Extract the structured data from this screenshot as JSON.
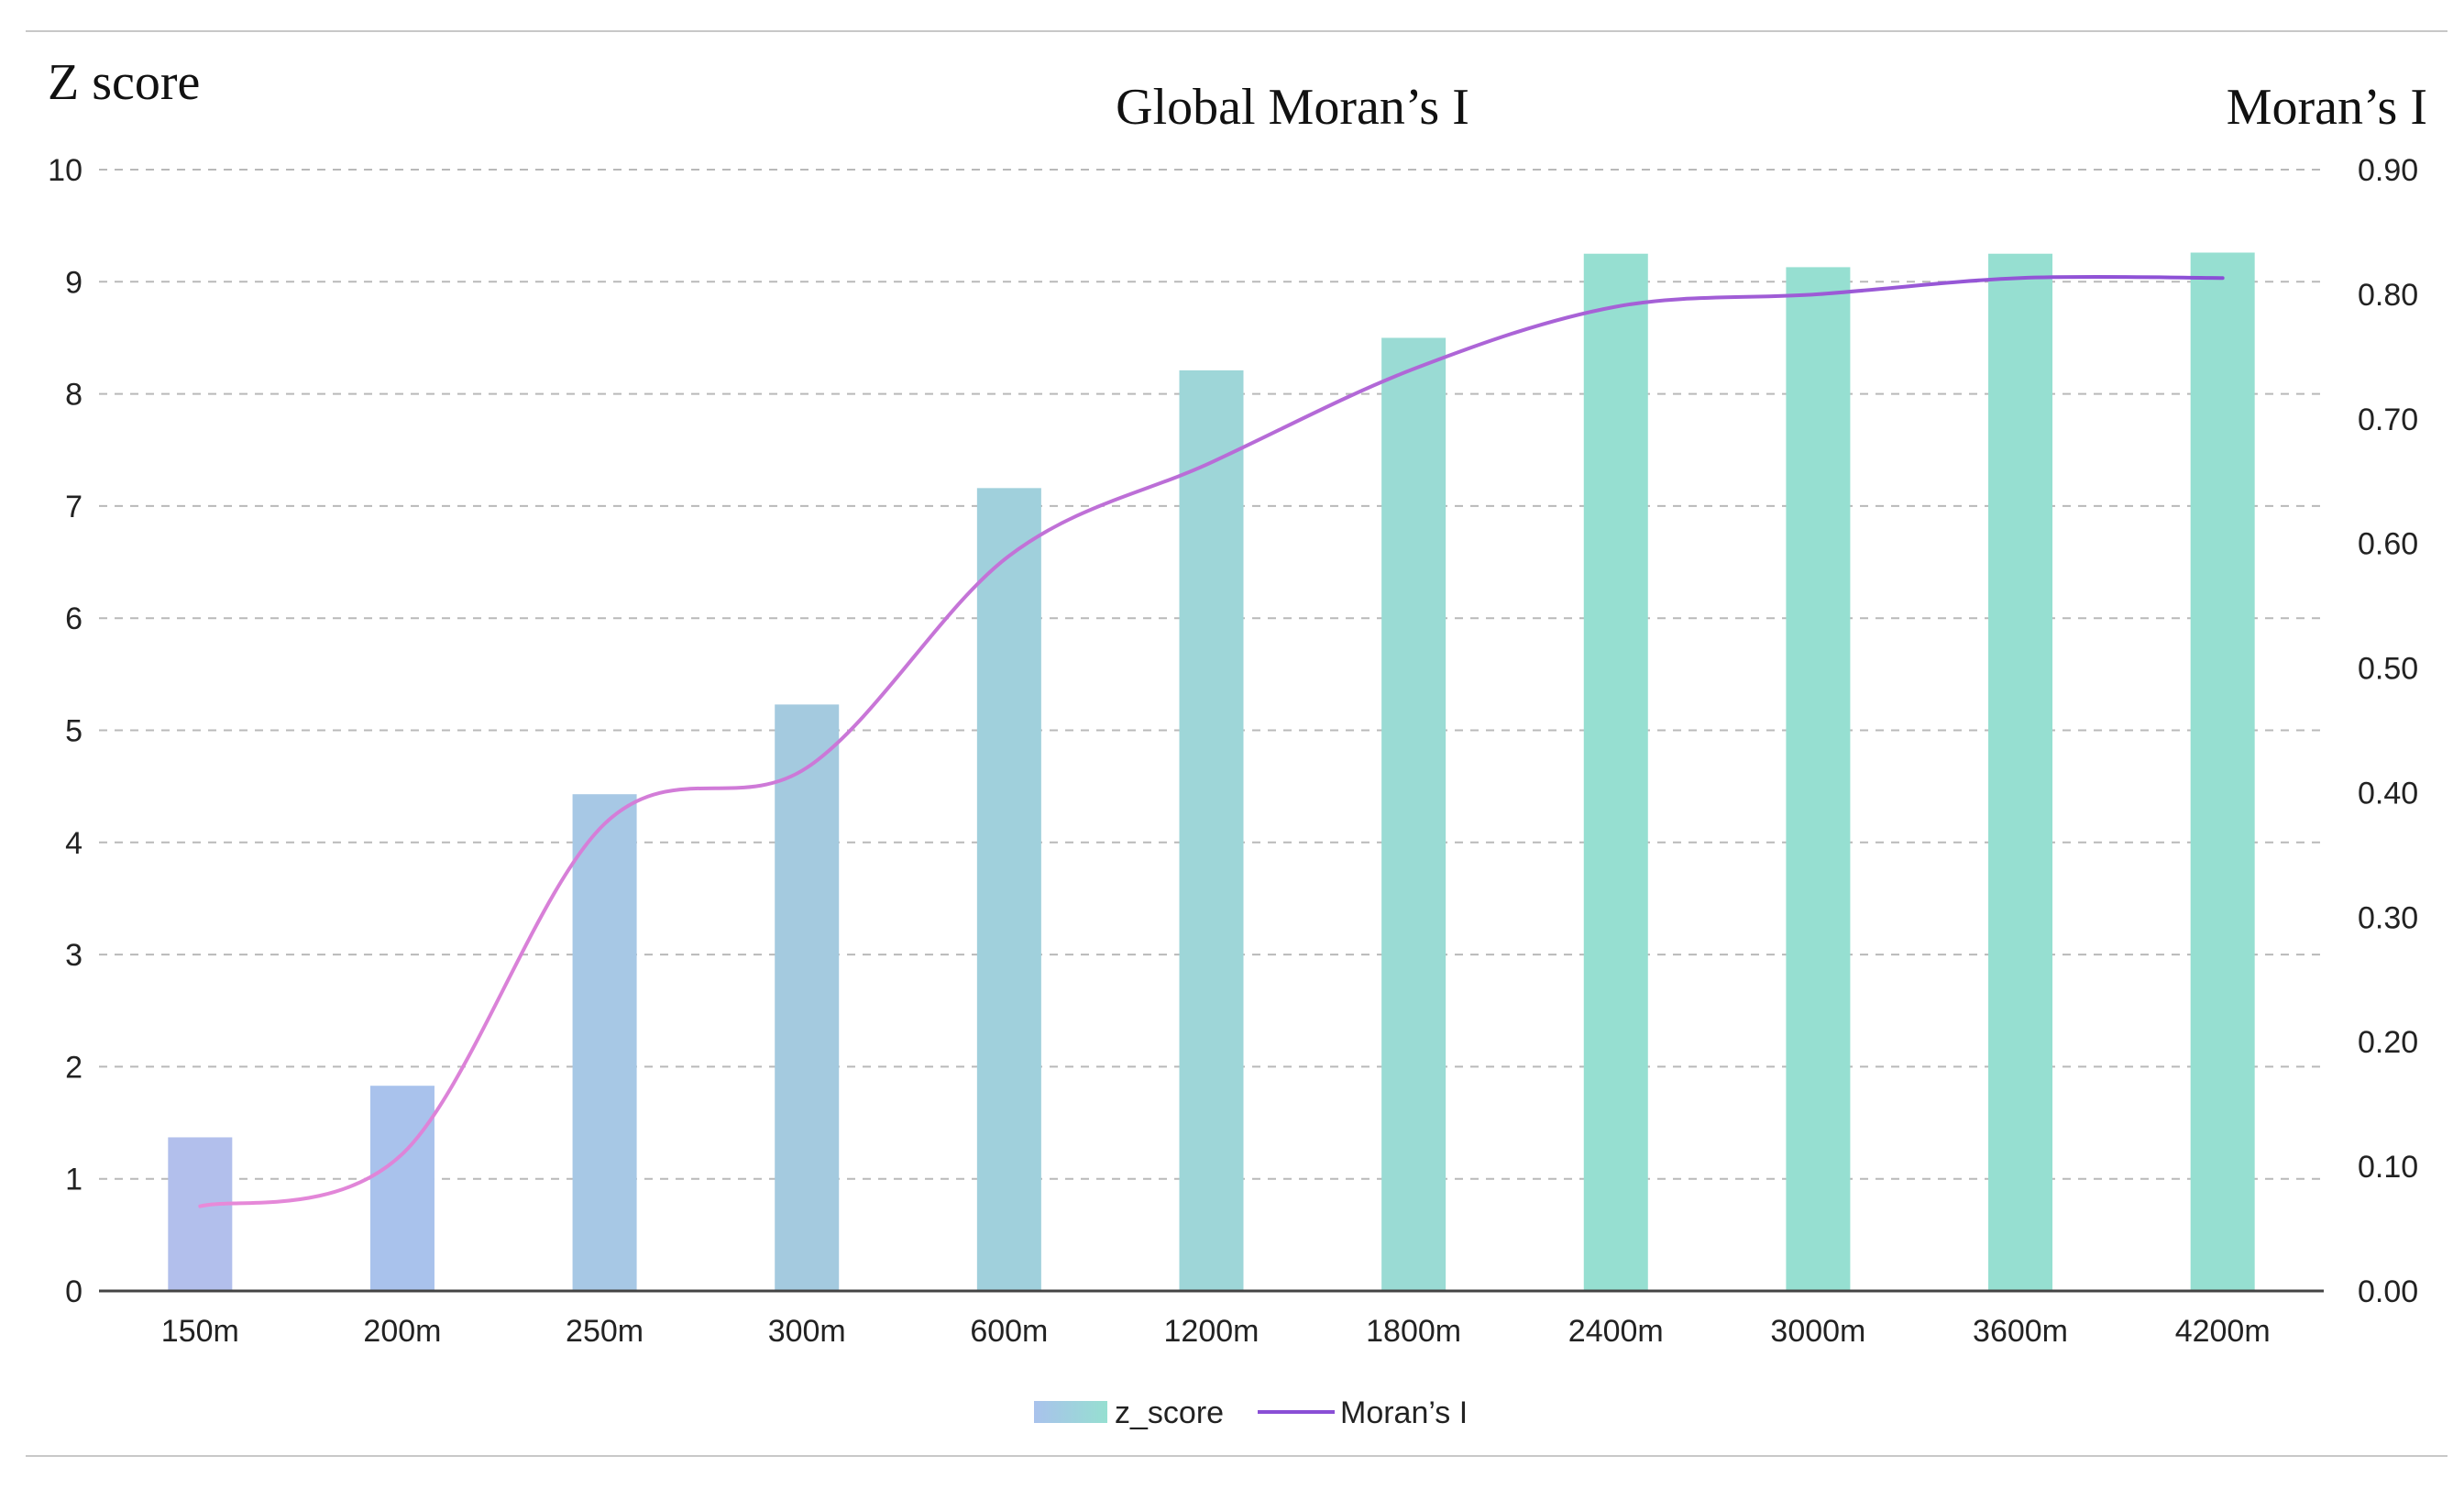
{
  "chart_data": {
    "type": "bar",
    "title": "Global Moran’s I",
    "ylabel_left": "Z score",
    "ylabel_right": "Moran’s I",
    "categories": [
      "150m",
      "200m",
      "250m",
      "300m",
      "600m",
      "1200m",
      "1800m",
      "2400m",
      "3000m",
      "3600m",
      "4200m"
    ],
    "y_left": {
      "min": 0,
      "max": 10,
      "ticks": [
        "0",
        "1",
        "2",
        "3",
        "4",
        "5",
        "6",
        "7",
        "8",
        "9",
        "10"
      ]
    },
    "y_right": {
      "min": 0,
      "max": 0.9,
      "ticks": [
        "0.00",
        "0.10",
        "0.20",
        "0.30",
        "0.40",
        "0.50",
        "0.60",
        "0.70",
        "0.80",
        "0.90"
      ]
    },
    "grid": "horizontal dashed",
    "legend_position": "bottom-center",
    "series": [
      {
        "name": "z_score",
        "type": "bar",
        "axis": "left",
        "values": [
          1.37,
          1.83,
          4.43,
          5.23,
          7.16,
          8.21,
          8.5,
          9.25,
          9.13,
          9.25,
          9.26
        ],
        "colors": [
          "#b2bfec",
          "#a9c2ec",
          "#a7c8e5",
          "#a4cadf",
          "#a0d0dc",
          "#9ed6d8",
          "#9adbd4",
          "#96dfd1",
          "#96dfd1",
          "#96dfd1",
          "#96dfd1"
        ]
      },
      {
        "name": "Moran’s I",
        "type": "line",
        "axis": "right",
        "values": [
          0.068,
          0.11,
          0.375,
          0.42,
          0.59,
          0.665,
          0.74,
          0.79,
          0.8,
          0.813,
          0.813
        ],
        "color_start": "#e88ad8",
        "color_end": "#8a4fd6"
      }
    ]
  }
}
